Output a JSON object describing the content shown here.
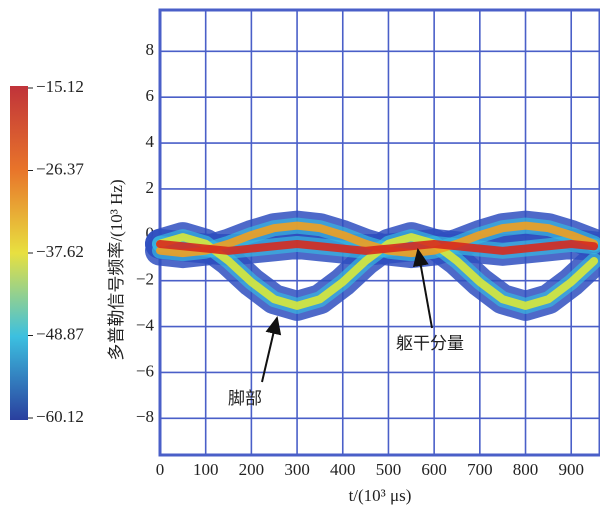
{
  "chart_data": {
    "type": "spectrogram",
    "xlabel": "t/(10³ μs)",
    "ylabel": "多普勒信号频率/(10³ Hz)",
    "xlim": [
      0,
      963
    ],
    "ylim": [
      -9.6,
      9.8
    ],
    "xticks": [
      0,
      100,
      200,
      300,
      400,
      500,
      600,
      700,
      800,
      900
    ],
    "yticks": [
      {
        "value": -8,
        "label": "−8"
      },
      {
        "value": -6,
        "label": "−6"
      },
      {
        "value": -4,
        "label": "−4"
      },
      {
        "value": -2,
        "label": "−2"
      },
      0,
      2,
      4,
      6,
      8
    ],
    "grid": true,
    "x": [
      0,
      50,
      100,
      150,
      200,
      250,
      300,
      350,
      400,
      450,
      500,
      550,
      600,
      650,
      700,
      750,
      800,
      850,
      900,
      950
    ],
    "series": [
      {
        "color": "#d8e83a",
        "values": [
          -0.39,
          -0.1,
          -0.39,
          -1.14,
          -2.06,
          -2.81,
          -3.1,
          -2.81,
          -2.06,
          -1.14,
          -0.39,
          -0.1,
          -0.39,
          -1.14,
          -2.06,
          -2.81,
          -3.1,
          -2.81,
          -2.06,
          -1.14
        ]
      },
      {
        "color": "#f0a020",
        "values": [
          -0.69,
          -0.8,
          -0.69,
          -0.39,
          -0.01,
          0.29,
          0.4,
          0.29,
          -0.01,
          -0.39,
          -0.69,
          -0.8,
          -0.69,
          -0.39,
          -0.01,
          0.29,
          0.4,
          0.29,
          -0.01,
          -0.39
        ]
      },
      {
        "color": "#d62a1e",
        "values": [
          -0.4,
          -0.5,
          -0.6,
          -0.7,
          -0.6,
          -0.5,
          -0.4,
          -0.5,
          -0.6,
          -0.7,
          -0.6,
          -0.5,
          -0.4,
          -0.5,
          -0.6,
          -0.7,
          -0.6,
          -0.5,
          -0.4,
          -0.5
        ]
      }
    ],
    "colorbar": {
      "ticks": [
        {
          "value": -15.12,
          "label": "−15.12"
        },
        {
          "value": -26.37,
          "label": "−26.37"
        },
        {
          "value": -37.62,
          "label": "−37.62"
        },
        {
          "value": -48.87,
          "label": "−48.87"
        },
        {
          "value": -60.12,
          "label": "−60.12"
        }
      ],
      "colors": [
        "#c0333a",
        "#e8742a",
        "#e8e040",
        "#3cc0e0",
        "#2a3f9e"
      ]
    },
    "annotations": [
      "脚部",
      "躯干分量"
    ]
  }
}
